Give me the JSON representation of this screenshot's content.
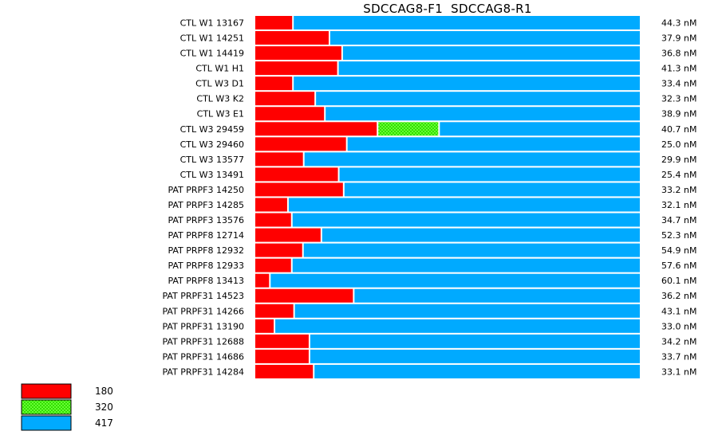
{
  "title": "SDCCAG8-F1  SDCCAG8-R1",
  "chart_data": {
    "type": "bar",
    "stacked": true,
    "title": "SDCCAG8-F1  SDCCAG8-R1",
    "colors": {
      "180": "#ff0000",
      "320": "#33dd00",
      "417": "#00aaff"
    },
    "legend": [
      {
        "name": "180",
        "color": "#ff0000",
        "pattern": "solid"
      },
      {
        "name": "320",
        "color": "#33dd00",
        "pattern": "checker"
      },
      {
        "name": "417",
        "color": "#00aaff",
        "pattern": "solid"
      }
    ],
    "legend_position": "bottom-left",
    "categories": [
      "CTL W1 13167",
      "CTL W1 14251",
      "CTL W1 14419",
      "CTL W1 H1",
      "CTL W3 D1",
      "CTL W3 K2",
      "CTL W3 E1",
      "CTL W3 29459",
      "CTL W3 29460",
      "CTL W3 13577",
      "CTL W3 13491",
      "PAT PRPF3 14250",
      "PAT PRPF3 14285",
      "PAT PRPF3 13576",
      "PAT PRPF8 12714",
      "PAT PRPF8 12932",
      "PAT PRPF8 12933",
      "PAT PRPF8 13413",
      "PAT PRPF31 14523",
      "PAT PRPF31 14266",
      "PAT PRPF31 13190",
      "PAT PRPF31 12688",
      "PAT PRPF31 14686",
      "PAT PRPF31 14284"
    ],
    "concentrations": [
      "44.3 nM",
      "37.9 nM",
      "36.8 nM",
      "41.3 nM",
      "33.4 nM",
      "32.3 nM",
      "38.9 nM",
      "40.7 nM",
      "25.0 nM",
      "29.9 nM",
      "25.4 nM",
      "33.2 nM",
      "32.1 nM",
      "34.7 nM",
      "52.3 nM",
      "54.9 nM",
      "57.6 nM",
      "60.1 nM",
      "36.2 nM",
      "43.1 nM",
      "33.0 nM",
      "34.2 nM",
      "33.7 nM",
      "33.1 nM"
    ],
    "series": [
      {
        "name": "180",
        "values": [
          0.1,
          0.195,
          0.228,
          0.217,
          0.1,
          0.158,
          0.183,
          0.32,
          0.24,
          0.128,
          0.219,
          0.232,
          0.087,
          0.097,
          0.174,
          0.126,
          0.097,
          0.04,
          0.258,
          0.103,
          0.052,
          0.143,
          0.143,
          0.154
        ]
      },
      {
        "name": "320",
        "values": [
          0,
          0,
          0,
          0,
          0,
          0,
          0,
          0.16,
          0,
          0,
          0,
          0,
          0,
          0,
          0,
          0,
          0,
          0,
          0,
          0,
          0,
          0,
          0,
          0
        ]
      },
      {
        "name": "417",
        "values": [
          0.9,
          0.805,
          0.772,
          0.783,
          0.9,
          0.842,
          0.817,
          0.52,
          0.76,
          0.872,
          0.781,
          0.768,
          0.913,
          0.903,
          0.826,
          0.874,
          0.903,
          0.96,
          0.742,
          0.897,
          0.948,
          0.857,
          0.857,
          0.846
        ]
      }
    ]
  }
}
